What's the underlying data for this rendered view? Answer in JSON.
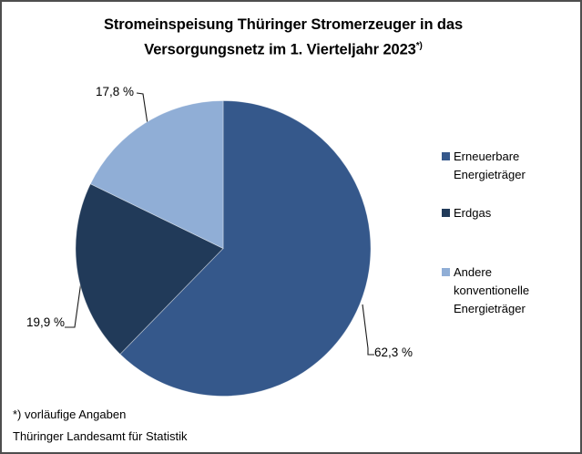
{
  "title": {
    "line1": "Stromeinspeisung Thüringer Stromerzeuger in das",
    "line2": "Versorgungsnetz im 1. Vierteljahr 2023",
    "footnote_marker": "*)"
  },
  "chart_data": {
    "type": "pie",
    "title": "Stromeinspeisung Thüringer Stromerzeuger in das Versorgungsnetz im 1. Vierteljahr 2023 *)",
    "unit": "%",
    "start_angle_deg": 0,
    "direction": "clockwise",
    "legend_position": "right",
    "slices": [
      {
        "label": "Erneuerbare Energieträger",
        "value": 62.3,
        "display": "62,3 %",
        "color": "#35588B"
      },
      {
        "label": "Erdgas",
        "value": 19.9,
        "display": "19,9 %",
        "color": "#213A59"
      },
      {
        "label": "Andere konventionelle Energieträger",
        "value": 17.8,
        "display": "17,8 %",
        "color": "#90AED6"
      }
    ]
  },
  "footer": {
    "footnote": "*) vorläufige Angaben",
    "source": "Thüringer Landesamt für Statistik"
  }
}
